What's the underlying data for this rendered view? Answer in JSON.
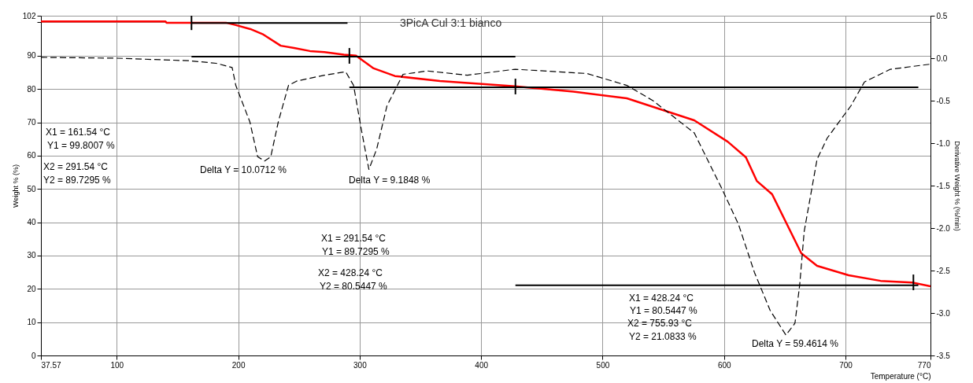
{
  "chart_data": {
    "type": "line",
    "title": "3PicA Cul 3:1 bianco",
    "xlabel": "Temperature (°C)",
    "ylabel": "Weight % (%)",
    "y2label": "Derivative Weight % (%/min)",
    "xlim": [
      37.57,
      770
    ],
    "xticks": [
      37.57,
      100,
      200,
      300,
      400,
      500,
      600,
      700,
      770
    ],
    "ylim": [
      0,
      102
    ],
    "yticks": [
      0,
      10,
      20,
      30,
      40,
      50,
      60,
      70,
      80,
      90,
      {
        "value": 100,
        "label": null
      },
      102
    ],
    "y2lim": [
      -3.5,
      0.5
    ],
    "y2ticks": [
      {
        "value": -3.5,
        "label": "-3.5"
      },
      {
        "value": -3.0,
        "label": "-3.0"
      },
      {
        "value": -2.5,
        "label": "-2.5"
      },
      {
        "value": -2.0,
        "label": "-2.0"
      },
      {
        "value": -1.5,
        "label": "-1.5"
      },
      {
        "value": -1.0,
        "label": "-1.0"
      },
      {
        "value": -0.5,
        "label": "-0.5"
      },
      {
        "value": 0,
        "label": "0.0"
      },
      {
        "value": 0.5,
        "label": "0.5"
      }
    ],
    "grid": true,
    "series": [
      {
        "color": "#ff0000",
        "line_style": "solid",
        "x": [
          37.57,
          140,
          141,
          190,
          198,
          210,
          220,
          235,
          246,
          259,
          271,
          287,
          297,
          311.5,
          329,
          366,
          428,
          476,
          520,
          575.5,
          603,
          618,
          627,
          639.6,
          663.6,
          676.6,
          702.6,
          728.9,
          755,
          770
        ],
        "values": [
          100.3,
          100.3,
          99.9,
          99.9,
          99.2,
          98.0,
          96.5,
          93.0,
          92.3,
          91.4,
          91.1,
          90.3,
          90.0,
          86.2,
          83.9,
          82.4,
          80.8,
          79.2,
          77.2,
          70.6,
          64.2,
          59.5,
          52.4,
          48.4,
          30.7,
          26.9,
          24.1,
          22.4,
          21.9,
          20.8
        ]
      },
      {
        "axis": "y2",
        "color": "#000000",
        "line_style": "dashed",
        "x": [
          37.57,
          100,
          160,
          182,
          195,
          198,
          209.6,
          216,
          221.7,
          226.8,
          233,
          241.4,
          248,
          271,
          288.5,
          295,
          301,
          307.6,
          314,
          322.5,
          335.7,
          355.6,
          388.7,
          428,
          487,
          520,
          541.5,
          575.5,
          598.7,
          612,
          625,
          638,
          651,
          658.4,
          662.3,
          666,
          676.6,
          685,
          704.5,
          715.6,
          737,
          770
        ],
        "values": [
          0.01,
          0.0,
          -0.03,
          -0.06,
          -0.11,
          -0.32,
          -0.75,
          -1.16,
          -1.21,
          -1.16,
          -0.75,
          -0.32,
          -0.27,
          -0.2,
          -0.16,
          -0.32,
          -0.81,
          -1.31,
          -1.07,
          -0.56,
          -0.19,
          -0.15,
          -0.2,
          -0.13,
          -0.18,
          -0.32,
          -0.5,
          -0.88,
          -1.55,
          -1.96,
          -2.52,
          -2.97,
          -3.26,
          -3.12,
          -2.67,
          -2.04,
          -1.19,
          -0.94,
          -0.56,
          -0.28,
          -0.13,
          -0.07
        ]
      },
      {
        "type": "line",
        "color": "#000000",
        "line_style": "solid",
        "x": [
          161.54,
          290
        ],
        "values": [
          99.8,
          99.8
        ]
      },
      {
        "type": "line",
        "color": "#000000",
        "line_style": "solid",
        "x": [
          161.54,
          428.24
        ],
        "values": [
          89.7,
          89.7
        ]
      },
      {
        "type": "line",
        "color": "#000000",
        "line_style": "solid",
        "x": [
          291.54,
          760
        ],
        "values": [
          80.5,
          80.5
        ]
      },
      {
        "type": "line",
        "color": "#000000",
        "line_style": "solid",
        "x": [
          428.24,
          760
        ],
        "values": [
          21.1,
          21.1
        ]
      },
      {
        "type": "line",
        "color": "#000000",
        "line_style": "solid",
        "x": [
          161.54,
          161.54
        ],
        "values": [
          97.7,
          102
        ]
      },
      {
        "type": "line",
        "color": "#000000",
        "line_style": "solid",
        "x": [
          291.54,
          291.54
        ],
        "values": [
          87.6,
          92.3
        ]
      },
      {
        "type": "line",
        "color": "#000000",
        "line_style": "solid",
        "x": [
          428.24,
          428.24
        ],
        "values": [
          78.4,
          83.1
        ]
      },
      {
        "type": "line",
        "color": "#000000",
        "line_style": "solid",
        "x": [
          755.93,
          755.93
        ],
        "values": [
          19.6,
          24.3
        ]
      }
    ],
    "annotations": [
      "X1 = 161.54 °C",
      "Y1 = 99.8007 %",
      "X2 = 291.54 °C",
      "Y2 = 89.7295 %",
      "Delta Y = 10.0712 %",
      "Delta Y = 9.1848 %",
      "X1 = 291.54 °C",
      "Y1 = 89.7295 %",
      "X2 = 428.24 °C",
      "Y2 = 80.5447 %",
      "X1 = 428.24 °C",
      "Y1 = 80.5447 %",
      "X2 = 755.93 °C",
      "Y2 = 21.0833 %",
      "Delta Y = 59.4614 %"
    ]
  }
}
